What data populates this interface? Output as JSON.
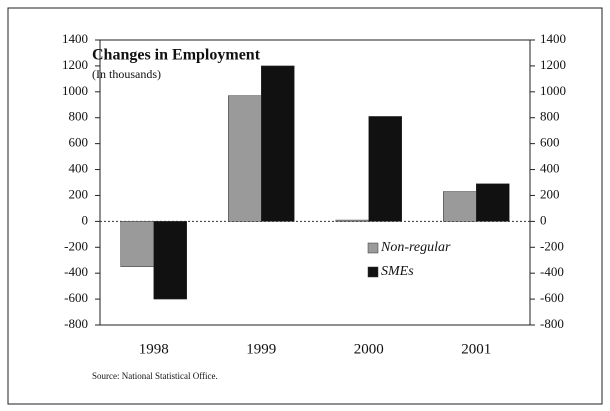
{
  "chart_data": {
    "type": "bar",
    "title": "Changes in Employment",
    "subtitle": "(In thousands)",
    "source": "Source: National Statistical Office.",
    "categories": [
      "1998",
      "1999",
      "2000",
      "2001"
    ],
    "series": [
      {
        "name": "Non-regular",
        "color": "#9a9a9a",
        "values": [
          -350,
          970,
          10,
          230
        ]
      },
      {
        "name": "SMEs",
        "color": "#111111",
        "values": [
          -600,
          1200,
          810,
          290
        ]
      }
    ],
    "ylim": [
      -800,
      1400
    ],
    "yticks": [
      -800,
      -600,
      -400,
      -200,
      0,
      200,
      400,
      600,
      800,
      1000,
      1200,
      1400
    ],
    "y2lim": [
      -800,
      1400
    ],
    "y2ticks": [
      -800,
      -600,
      -400,
      -200,
      0,
      200,
      400,
      600,
      800,
      1000,
      1200,
      1400
    ],
    "legend": "lower-right"
  }
}
